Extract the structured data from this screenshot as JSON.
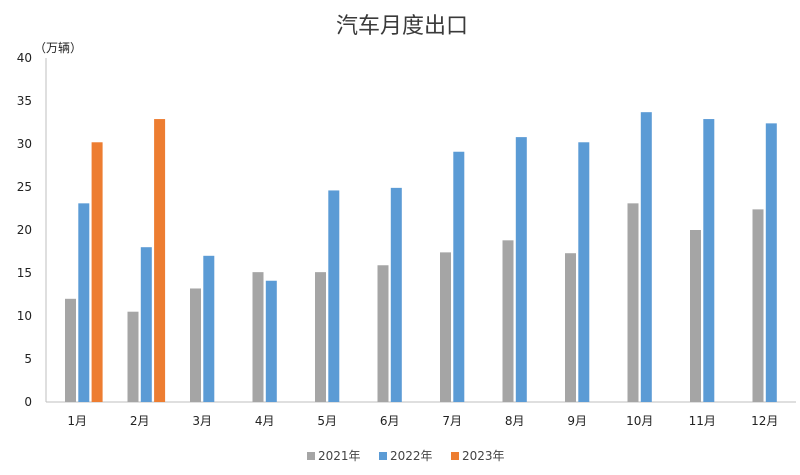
{
  "chart_data": {
    "type": "bar",
    "title": "汽车月度出口",
    "unit_label": "（万辆）",
    "ylim": [
      0,
      40
    ],
    "yticks": [
      0,
      5,
      10,
      15,
      20,
      25,
      30,
      35,
      40
    ],
    "grid": false,
    "legend_position": "bottom",
    "categories": [
      "1月",
      "2月",
      "3月",
      "4月",
      "5月",
      "6月",
      "7月",
      "8月",
      "9月",
      "10月",
      "11月",
      "12月"
    ],
    "series": [
      {
        "name": "2021年",
        "color": "#a5a5a5",
        "values": [
          12.0,
          10.5,
          13.2,
          15.1,
          15.1,
          15.9,
          17.4,
          18.8,
          17.3,
          23.1,
          20.0,
          22.4
        ]
      },
      {
        "name": "2022年",
        "color": "#5b9bd5",
        "values": [
          23.1,
          18.0,
          17.0,
          14.1,
          24.6,
          24.9,
          29.1,
          30.8,
          30.2,
          33.7,
          32.9,
          32.4
        ]
      },
      {
        "name": "2023年",
        "color": "#ed7d31",
        "values": [
          30.2,
          32.9,
          null,
          null,
          null,
          null,
          null,
          null,
          null,
          null,
          null,
          null
        ]
      }
    ]
  }
}
